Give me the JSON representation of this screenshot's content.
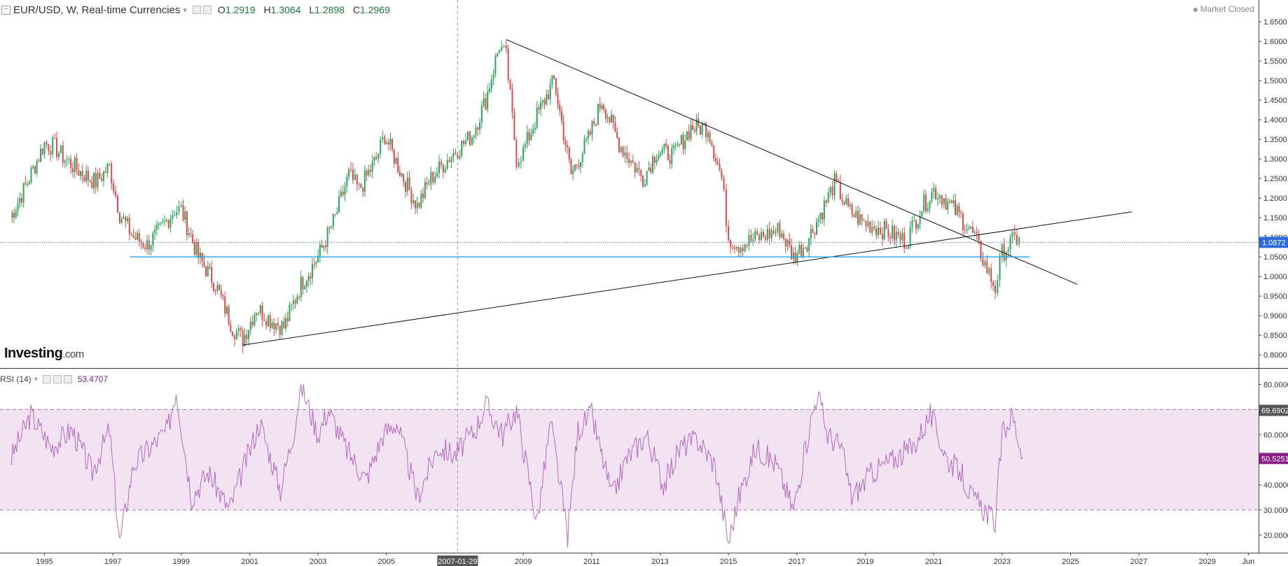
{
  "header": {
    "symbol": "EUR/USD, W, Real-time Currencies",
    "open_label": "O",
    "open": "1.2919",
    "high_label": "H",
    "high": "1.3064",
    "low_label": "L",
    "low": "1.2898",
    "close_label": "C",
    "close": "1.2969",
    "market_status": "Market Closed"
  },
  "logo": {
    "brand": "Investing",
    "suffix": ".com"
  },
  "rsi_header": {
    "label": "RSI (14)",
    "value": "53.4707"
  },
  "colors": {
    "up": "#26a65b",
    "down": "#e04848",
    "rsi": "#b36bbf",
    "rsi_band": "#f1e3f1",
    "support": "#1ea0e6",
    "price_tag": "#2d6be0",
    "rsi_tag": "#8a1f8a"
  },
  "chart_data": [
    {
      "type": "line",
      "title": "EUR/USD, W, Real-time Currencies",
      "series": [
        {
          "name": "EUR/USD",
          "x": [
            1994,
            1994.5,
            1995.0,
            1995.3,
            1995.6,
            1996.0,
            1996.5,
            1996.9,
            1997.2,
            1997.6,
            1998.0,
            1998.4,
            1998.8,
            1999.0,
            1999.5,
            2000.0,
            2000.5,
            2000.8,
            2001.2,
            2001.6,
            2002.0,
            2002.5,
            2003.0,
            2003.5,
            2003.9,
            2004.2,
            2004.7,
            2004.95,
            2005.5,
            2005.9,
            2006.3,
            2006.9,
            2007.5,
            2007.9,
            2008.3,
            2008.5,
            2008.8,
            2009.0,
            2009.4,
            2009.9,
            2010.4,
            2010.9,
            2011.3,
            2011.8,
            2012.5,
            2012.9,
            2013.4,
            2013.9,
            2014.4,
            2014.8,
            2015.0,
            2015.3,
            2015.9,
            2016.5,
            2016.9,
            2017.3,
            2017.8,
            2018.1,
            2018.5,
            2018.9,
            2019.5,
            2020.2,
            2020.6,
            2021.0,
            2021.3,
            2021.8,
            2022.2,
            2022.5,
            2022.8,
            2023.0,
            2023.3,
            2023.5
          ],
          "values": [
            1.15,
            1.24,
            1.34,
            1.33,
            1.3,
            1.27,
            1.24,
            1.28,
            1.16,
            1.1,
            1.08,
            1.12,
            1.17,
            1.17,
            1.05,
            0.98,
            0.87,
            0.84,
            0.92,
            0.89,
            0.87,
            0.98,
            1.05,
            1.15,
            1.26,
            1.22,
            1.3,
            1.36,
            1.25,
            1.18,
            1.25,
            1.31,
            1.36,
            1.45,
            1.59,
            1.56,
            1.3,
            1.32,
            1.41,
            1.5,
            1.26,
            1.35,
            1.45,
            1.34,
            1.25,
            1.32,
            1.31,
            1.38,
            1.38,
            1.25,
            1.1,
            1.08,
            1.1,
            1.12,
            1.05,
            1.09,
            1.18,
            1.24,
            1.17,
            1.14,
            1.12,
            1.09,
            1.17,
            1.22,
            1.2,
            1.15,
            1.1,
            1.03,
            0.97,
            1.06,
            1.09,
            1.1
          ]
        }
      ],
      "trendlines": [
        {
          "name": "resistance",
          "x": [
            2008.5,
            2025.2
          ],
          "y": [
            1.605,
            0.98
          ]
        },
        {
          "name": "support-rising",
          "x": [
            2000.8,
            2026.8
          ],
          "y": [
            0.825,
            1.165
          ]
        },
        {
          "name": "support-horizontal",
          "x": [
            1997.5,
            2023.8
          ],
          "y": [
            1.05,
            1.05
          ]
        }
      ],
      "current_price": 1.0872,
      "ylim": [
        0.77,
        1.67
      ],
      "yticks": [
        "1.6500",
        "1.6000",
        "1.5500",
        "1.5000",
        "1.4500",
        "1.4000",
        "1.3500",
        "1.3000",
        "1.2500",
        "1.2000",
        "1.1500",
        "1.1000",
        "1.0500",
        "1.0000",
        "0.9500",
        "0.9000",
        "0.8500",
        "0.8000"
      ],
      "price_tag": "1.0872",
      "scale": "linear"
    },
    {
      "type": "line",
      "title": "RSI (14)",
      "series": [
        {
          "name": "RSI (14)",
          "x": [
            1994,
            1994.6,
            1995.2,
            1995.8,
            1996.4,
            1996.9,
            1997.2,
            1997.6,
            1998.1,
            1998.6,
            1998.85,
            1999.3,
            1999.8,
            2000.4,
            2000.9,
            2001.3,
            2001.9,
            2002.3,
            2002.5,
            2003.0,
            2003.3,
            2003.8,
            2004.4,
            2004.9,
            2005.3,
            2005.9,
            2006.5,
            2007.0,
            2007.6,
            2007.9,
            2008.4,
            2008.8,
            2009.4,
            2009.8,
            2010.3,
            2010.6,
            2011.0,
            2011.6,
            2012.0,
            2012.6,
            2013.1,
            2013.6,
            2014.1,
            2014.6,
            2015.0,
            2015.3,
            2015.8,
            2016.4,
            2016.9,
            2017.4,
            2017.6,
            2017.9,
            2018.3,
            2018.6,
            2019.2,
            2019.8,
            2020.4,
            2020.9,
            2021.4,
            2021.8,
            2022.1,
            2022.5,
            2022.8,
            2023.0,
            2023.3,
            2023.6
          ],
          "values": [
            50,
            68,
            55,
            62,
            45,
            62,
            17,
            48,
            55,
            62,
            78,
            35,
            45,
            30,
            50,
            65,
            38,
            62,
            80,
            60,
            70,
            55,
            42,
            60,
            65,
            35,
            55,
            52,
            62,
            72,
            60,
            70,
            25,
            65,
            20,
            62,
            68,
            35,
            50,
            60,
            40,
            55,
            58,
            48,
            17,
            35,
            55,
            48,
            30,
            65,
            77,
            60,
            55,
            35,
            45,
            50,
            55,
            68,
            50,
            45,
            35,
            30,
            25,
            60,
            68,
            51
          ]
        }
      ],
      "bands": [
        30,
        70
      ],
      "ylim": [
        13,
        86
      ],
      "yticks": [
        "80.0000",
        "60.0000",
        "40.0000",
        "30.0000",
        "20.0000"
      ],
      "upper_tag": "69.6902",
      "current_tag": "50.5251"
    }
  ],
  "xaxis": {
    "range": [
      1993.7,
      2030.5
    ],
    "labels": [
      {
        "x": 1995,
        "text": "1995"
      },
      {
        "x": 1997,
        "text": "1997"
      },
      {
        "x": 1999,
        "text": "1999"
      },
      {
        "x": 2001,
        "text": "2001"
      },
      {
        "x": 2003,
        "text": "2003"
      },
      {
        "x": 2005,
        "text": "2005"
      },
      {
        "x": 2009,
        "text": "2009"
      },
      {
        "x": 2011,
        "text": "2011"
      },
      {
        "x": 2013,
        "text": "2013"
      },
      {
        "x": 2015,
        "text": "2015"
      },
      {
        "x": 2017,
        "text": "2017"
      },
      {
        "x": 2019,
        "text": "2019"
      },
      {
        "x": 2021,
        "text": "2021"
      },
      {
        "x": 2023,
        "text": "2023"
      },
      {
        "x": 2025,
        "text": "2025"
      },
      {
        "x": 2027,
        "text": "2027"
      },
      {
        "x": 2029,
        "text": "2029"
      },
      {
        "x": 2030.2,
        "text": "Jun"
      }
    ],
    "crosshair": {
      "x": 2007.08,
      "text": "2007-01-29"
    }
  }
}
